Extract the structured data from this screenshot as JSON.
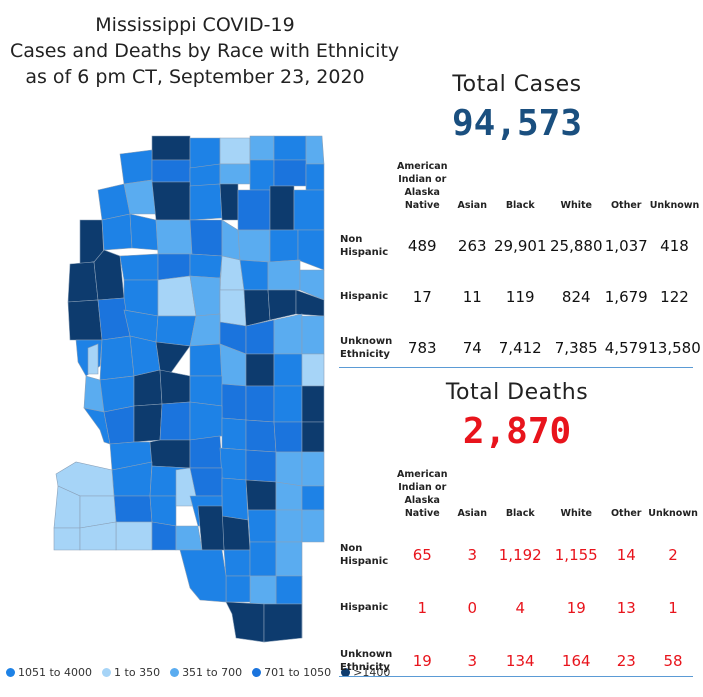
{
  "title": {
    "line1": "Mississippi COVID-19",
    "line2": "Cases and Deaths by Race with Ethnicity",
    "line3": "as of 6 pm CT, September 23, 2020"
  },
  "legend": [
    {
      "label": "1051 to 4000",
      "color": "#1e82e6"
    },
    {
      "label": "1 to 350",
      "color": "#a6d4f7"
    },
    {
      "label": "351 to 700",
      "color": "#5aacf0"
    },
    {
      "label": "701 to 1050",
      "color": "#1b74dd"
    },
    {
      "label": ">1400",
      "color": "#0d3b6e"
    }
  ],
  "columns": [
    "American Indian or Alaska Native",
    "Asian",
    "Black",
    "White",
    "Other",
    "Unknown"
  ],
  "cases": {
    "title": "Total Cases",
    "total": "94,573",
    "rows": [
      {
        "label": "Non Hispanic",
        "values": [
          "489",
          "263",
          "29,901",
          "25,880",
          "1,037",
          "418"
        ]
      },
      {
        "label": "Hispanic",
        "values": [
          "17",
          "11",
          "119",
          "824",
          "1,679",
          "122"
        ]
      },
      {
        "label": "Unknown Ethnicity",
        "values": [
          "783",
          "74",
          "7,412",
          "7,385",
          "4,579",
          "13,580"
        ]
      }
    ]
  },
  "deaths": {
    "title": "Total Deaths",
    "total": "2,870",
    "rows": [
      {
        "label": "Non Hispanic",
        "values": [
          "65",
          "3",
          "1,192",
          "1,155",
          "14",
          "2"
        ]
      },
      {
        "label": "Hispanic",
        "values": [
          "1",
          "0",
          "4",
          "19",
          "13",
          "1"
        ]
      },
      {
        "label": "Unknown Ethnicity",
        "values": [
          "19",
          "3",
          "134",
          "164",
          "23",
          "58"
        ]
      }
    ]
  },
  "colors": {
    "cases_total": "#1a4f7f",
    "deaths_total": "#e8141c",
    "divider": "#5b9bd5"
  }
}
